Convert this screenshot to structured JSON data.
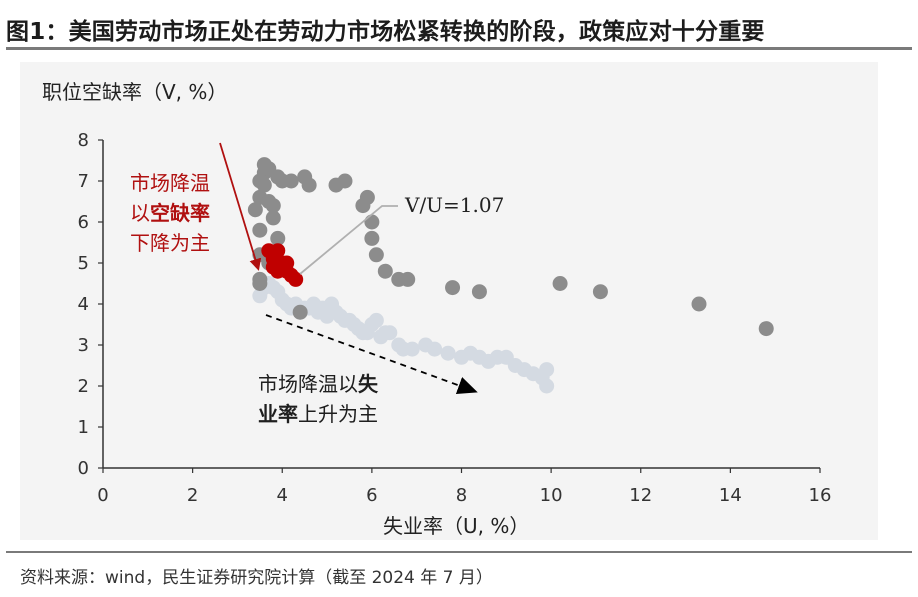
{
  "header": {
    "title": "图1：美国劳动市场正处在劳动力市场松紧转换的阶段，政策应对十分重要"
  },
  "footer": {
    "source": "资料来源：wind，民生证券研究院计算（截至 2024 年 7 月）"
  },
  "annotations": {
    "red_line1": "市场降温",
    "red_line2_a": "以",
    "red_line2_b": "空缺率",
    "red_line3": "下降为主",
    "dark_line1_a": "市场降温以",
    "dark_line1_b": "失",
    "dark_line2_a": "业率",
    "dark_line2_b": "上升为主",
    "vu_label": "V/U=1.07"
  },
  "colors": {
    "early_series": "#8c8c8c",
    "recent_series": "#d4dae2",
    "current_series": "#c00000",
    "red_arrow": "#b01010",
    "dark_arrow": "#000000"
  },
  "chart_data": {
    "type": "scatter",
    "title": "",
    "xlabel": "失业率（U, %）",
    "ylabel": "职位空缺率（V, %）",
    "xlim": [
      0,
      16
    ],
    "ylim": [
      0,
      8
    ],
    "x_ticks": [
      "0",
      "2",
      "4",
      "6",
      "8",
      "10",
      "12",
      "14",
      "16"
    ],
    "y_ticks": [
      "0",
      "1",
      "2",
      "3",
      "4",
      "5",
      "6",
      "7",
      "8"
    ],
    "grid": false,
    "legend": "none",
    "series": [
      {
        "color_key": "recent_series",
        "points": [
          [
            3.5,
            4.2
          ],
          [
            3.6,
            4.4
          ],
          [
            3.7,
            4.5
          ],
          [
            3.8,
            4.4
          ],
          [
            3.9,
            4.3
          ],
          [
            4.0,
            4.1
          ],
          [
            4.1,
            4.0
          ],
          [
            4.2,
            3.9
          ],
          [
            4.3,
            4.0
          ],
          [
            4.4,
            3.8
          ],
          [
            4.5,
            3.9
          ],
          [
            4.6,
            3.9
          ],
          [
            4.7,
            4.0
          ],
          [
            4.8,
            3.8
          ],
          [
            4.9,
            3.9
          ],
          [
            5.0,
            3.7
          ],
          [
            5.1,
            4.0
          ],
          [
            5.2,
            3.8
          ],
          [
            5.3,
            3.7
          ],
          [
            5.4,
            3.6
          ],
          [
            5.5,
            3.6
          ],
          [
            5.6,
            3.5
          ],
          [
            5.7,
            3.4
          ],
          [
            5.8,
            3.3
          ],
          [
            5.9,
            3.3
          ],
          [
            6.0,
            3.5
          ],
          [
            6.1,
            3.6
          ],
          [
            6.2,
            3.2
          ],
          [
            6.3,
            3.3
          ],
          [
            6.4,
            3.3
          ],
          [
            6.6,
            3.0
          ],
          [
            6.7,
            2.9
          ],
          [
            6.9,
            2.9
          ],
          [
            7.2,
            3.0
          ],
          [
            7.4,
            2.9
          ],
          [
            7.7,
            2.8
          ],
          [
            8.0,
            2.7
          ],
          [
            8.2,
            2.8
          ],
          [
            8.4,
            2.7
          ],
          [
            8.6,
            2.6
          ],
          [
            8.8,
            2.7
          ],
          [
            9.0,
            2.7
          ],
          [
            9.2,
            2.5
          ],
          [
            9.4,
            2.4
          ],
          [
            9.6,
            2.3
          ],
          [
            9.8,
            2.2
          ],
          [
            9.9,
            2.4
          ],
          [
            9.9,
            2.0
          ]
        ]
      },
      {
        "color_key": "early_series",
        "points": [
          [
            3.5,
            4.6
          ],
          [
            3.5,
            5.2
          ],
          [
            3.5,
            5.8
          ],
          [
            3.4,
            6.3
          ],
          [
            3.5,
            6.6
          ],
          [
            3.5,
            7.0
          ],
          [
            3.6,
            7.2
          ],
          [
            3.6,
            7.4
          ],
          [
            3.7,
            7.3
          ],
          [
            3.6,
            6.9
          ],
          [
            3.7,
            6.5
          ],
          [
            3.8,
            6.1
          ],
          [
            3.9,
            5.6
          ],
          [
            3.8,
            5.2
          ],
          [
            3.7,
            5.0
          ],
          [
            3.8,
            6.4
          ],
          [
            3.9,
            7.1
          ],
          [
            4.0,
            7.0
          ],
          [
            4.2,
            7.0
          ],
          [
            4.5,
            7.1
          ],
          [
            4.6,
            6.9
          ],
          [
            5.2,
            6.9
          ],
          [
            5.4,
            7.0
          ],
          [
            5.8,
            6.4
          ],
          [
            5.9,
            6.6
          ],
          [
            6.0,
            6.0
          ],
          [
            6.0,
            5.6
          ],
          [
            6.1,
            5.2
          ],
          [
            6.3,
            4.8
          ],
          [
            6.6,
            4.6
          ],
          [
            6.8,
            4.6
          ],
          [
            7.8,
            4.4
          ],
          [
            8.4,
            4.3
          ],
          [
            10.2,
            4.5
          ],
          [
            11.1,
            4.3
          ],
          [
            13.3,
            4.0
          ],
          [
            14.8,
            3.4
          ],
          [
            4.4,
            3.8
          ],
          [
            3.5,
            4.5
          ]
        ]
      },
      {
        "color_key": "current_series",
        "points": [
          [
            3.7,
            5.3
          ],
          [
            3.8,
            5.1
          ],
          [
            3.9,
            5.3
          ],
          [
            4.0,
            5.0
          ],
          [
            3.9,
            4.8
          ],
          [
            4.0,
            4.9
          ],
          [
            4.1,
            4.8
          ],
          [
            4.2,
            4.7
          ],
          [
            4.3,
            4.6
          ],
          [
            3.8,
            4.9
          ],
          [
            4.1,
            5.0
          ]
        ]
      }
    ],
    "annotations": [
      "市场降温以空缺率下降为主",
      "市场降温以失业率上升为主",
      "V/U=1.07"
    ]
  }
}
